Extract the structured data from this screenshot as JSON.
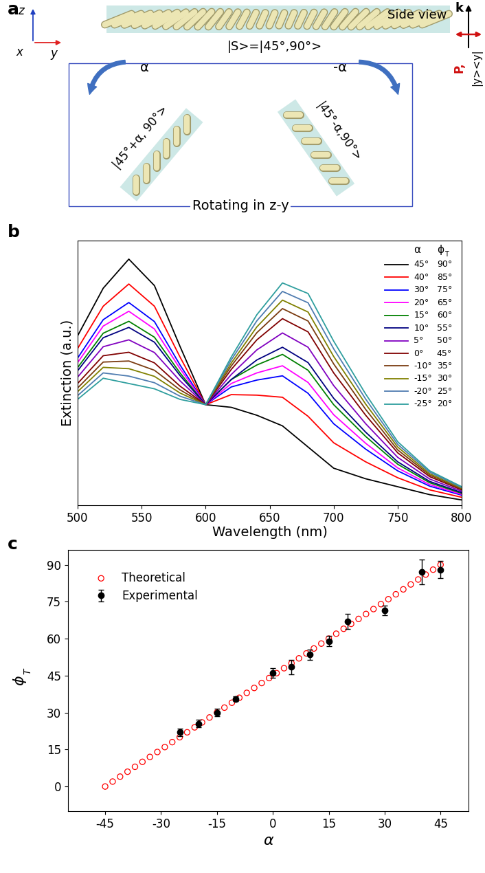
{
  "panel_labels": [
    "a",
    "b",
    "c"
  ],
  "diagram": {
    "axes_labels": [
      "z",
      "x",
      "y"
    ],
    "side_view": "Side view",
    "initial_state": "|S>=|45°,90°>",
    "wave_vector": "k",
    "polarization": "P,",
    "projector": "|y><y|",
    "rotations": [
      {
        "angle": "α",
        "state": "|45°+α, 90°>"
      },
      {
        "angle": "-α",
        "state": "|45°-α,90°>"
      }
    ],
    "caption": "Rotating in z-y"
  },
  "chart_data": [
    {
      "type": "line",
      "xlabel": "Wavelength (nm)",
      "ylabel": "Extinction (a.u.)",
      "x": [
        500,
        520,
        540,
        560,
        580,
        600,
        620,
        640,
        660,
        680,
        700,
        725,
        750,
        775,
        800
      ],
      "xlim": [
        500,
        800
      ],
      "xticks": [
        500,
        550,
        600,
        650,
        700,
        750,
        800
      ],
      "ylim": [
        0,
        1
      ],
      "yticks": [],
      "tick_labels": "x",
      "legend_header": {
        "name": "α",
        "phi": {
          "symbol": "ϕ",
          "subscript": "T"
        }
      },
      "series": [
        {
          "name": "45°",
          "phi_T": "90°",
          "color": "#000000",
          "values": [
            0.64,
            0.82,
            0.93,
            0.83,
            0.6,
            0.38,
            0.37,
            0.34,
            0.3,
            0.22,
            0.14,
            0.1,
            0.07,
            0.04,
            0.02
          ]
        },
        {
          "name": "40°",
          "phi_T": "85°",
          "color": "#ff0000",
          "values": [
            0.592,
            0.752,
            0.836,
            0.752,
            0.56,
            0.38,
            0.418,
            0.416,
            0.408,
            0.336,
            0.236,
            0.164,
            0.104,
            0.058,
            0.03
          ]
        },
        {
          "name": "30°",
          "phi_T": "75°",
          "color": "#0000ff",
          "values": [
            0.556,
            0.701,
            0.766,
            0.694,
            0.53,
            0.38,
            0.447,
            0.473,
            0.489,
            0.423,
            0.308,
            0.212,
            0.13,
            0.072,
            0.038
          ]
        },
        {
          "name": "20°",
          "phi_T": "65°",
          "color": "#ff00ff",
          "values": [
            0.539,
            0.677,
            0.733,
            0.666,
            0.516,
            0.38,
            0.46,
            0.5,
            0.527,
            0.464,
            0.342,
            0.234,
            0.141,
            0.078,
            0.041
          ]
        },
        {
          "name": "15°",
          "phi_T": "60°",
          "color": "#008000",
          "values": [
            0.52,
            0.65,
            0.695,
            0.635,
            0.5,
            0.38,
            0.475,
            0.53,
            0.57,
            0.51,
            0.38,
            0.26,
            0.155,
            0.085,
            0.045
          ]
        },
        {
          "name": "10°",
          "phi_T": "55°",
          "color": "#000080",
          "values": [
            0.508,
            0.633,
            0.672,
            0.616,
            0.49,
            0.38,
            0.475,
            0.549,
            0.597,
            0.539,
            0.404,
            0.276,
            0.164,
            0.09,
            0.048
          ]
        },
        {
          "name": "5°",
          "phi_T": "50°",
          "color": "#8000c0",
          "values": [
            0.484,
            0.599,
            0.625,
            0.577,
            0.47,
            0.38,
            0.494,
            0.587,
            0.651,
            0.597,
            0.452,
            0.308,
            0.181,
            0.099,
            0.053
          ]
        },
        {
          "name": "0°",
          "phi_T": "45°",
          "color": "#800000",
          "values": [
            0.46,
            0.565,
            0.578,
            0.538,
            0.45,
            0.38,
            0.513,
            0.625,
            0.705,
            0.655,
            0.5,
            0.34,
            0.198,
            0.108,
            0.058
          ]
        },
        {
          "name": "-10°",
          "phi_T": "35°",
          "color": "#7a3b10",
          "values": [
            0.443,
            0.541,
            0.545,
            0.51,
            0.436,
            0.38,
            0.526,
            0.652,
            0.743,
            0.696,
            0.534,
            0.362,
            0.209,
            0.114,
            0.061
          ]
        },
        {
          "name": "-15°",
          "phi_T": "30°",
          "color": "#808000",
          "values": [
            0.429,
            0.521,
            0.516,
            0.487,
            0.424,
            0.38,
            0.537,
            0.674,
            0.775,
            0.73,
            0.562,
            0.382,
            0.22,
            0.119,
            0.064
          ]
        },
        {
          "name": "-20°",
          "phi_T": "25°",
          "color": "#4f7cb0",
          "values": [
            0.414,
            0.5,
            0.488,
            0.463,
            0.412,
            0.38,
            0.549,
            0.697,
            0.808,
            0.765,
            0.591,
            0.401,
            0.23,
            0.125,
            0.067
          ]
        },
        {
          "name": "-25°",
          "phi_T": "20°",
          "color": "#2e9e9e",
          "values": [
            0.4,
            0.48,
            0.46,
            0.44,
            0.4,
            0.38,
            0.56,
            0.72,
            0.84,
            0.8,
            0.62,
            0.42,
            0.24,
            0.13,
            0.07
          ]
        }
      ]
    },
    {
      "type": "scatter",
      "xlabel": "α",
      "ylabel": {
        "symbol": "ϕ",
        "subscript": "T"
      },
      "xlim": [
        -55,
        52.5
      ],
      "xticks": [
        -45,
        -30,
        -15,
        0,
        15,
        30,
        45
      ],
      "ylim": [
        -10,
        96
      ],
      "yticks": [
        0,
        15,
        30,
        45,
        60,
        75,
        90
      ],
      "legend": "upper left",
      "series": [
        {
          "name": "Theoretical",
          "color": "#ff0000",
          "marker": "open_circle",
          "x": [
            -45,
            -43,
            -41,
            -39,
            -37,
            -35,
            -33,
            -31,
            -29,
            -27,
            -25,
            -23,
            -21,
            -19,
            -17,
            -15,
            -13,
            -11,
            -9,
            -7,
            -5,
            -3,
            -1,
            1,
            3,
            5,
            7,
            9,
            11,
            13,
            15,
            17,
            19,
            21,
            23,
            25,
            27,
            29,
            31,
            33,
            35,
            37,
            39,
            41,
            43,
            45
          ],
          "values": [
            0,
            2,
            4,
            6,
            8,
            10,
            12,
            14,
            16,
            18,
            20,
            22,
            24,
            26,
            28,
            30,
            32,
            34,
            36,
            38,
            40,
            42,
            44,
            46,
            48,
            50,
            52,
            54,
            56,
            58,
            60,
            62,
            64,
            66,
            68,
            70,
            72,
            74,
            76,
            78,
            80,
            82,
            84,
            86,
            88,
            90
          ]
        },
        {
          "name": "Experimental",
          "color": "#000000",
          "marker": "circle",
          "x": [
            -25,
            -20,
            -15,
            -10,
            0,
            5,
            10,
            15,
            20,
            30,
            40,
            45
          ],
          "values": [
            22,
            25.5,
            30,
            35.5,
            46,
            48.5,
            53.5,
            59,
            67,
            71.5,
            87,
            88
          ],
          "errors": [
            1.5,
            1.5,
            1.5,
            1,
            2,
            3,
            2,
            2,
            3,
            2,
            5,
            3.5
          ]
        }
      ]
    }
  ]
}
